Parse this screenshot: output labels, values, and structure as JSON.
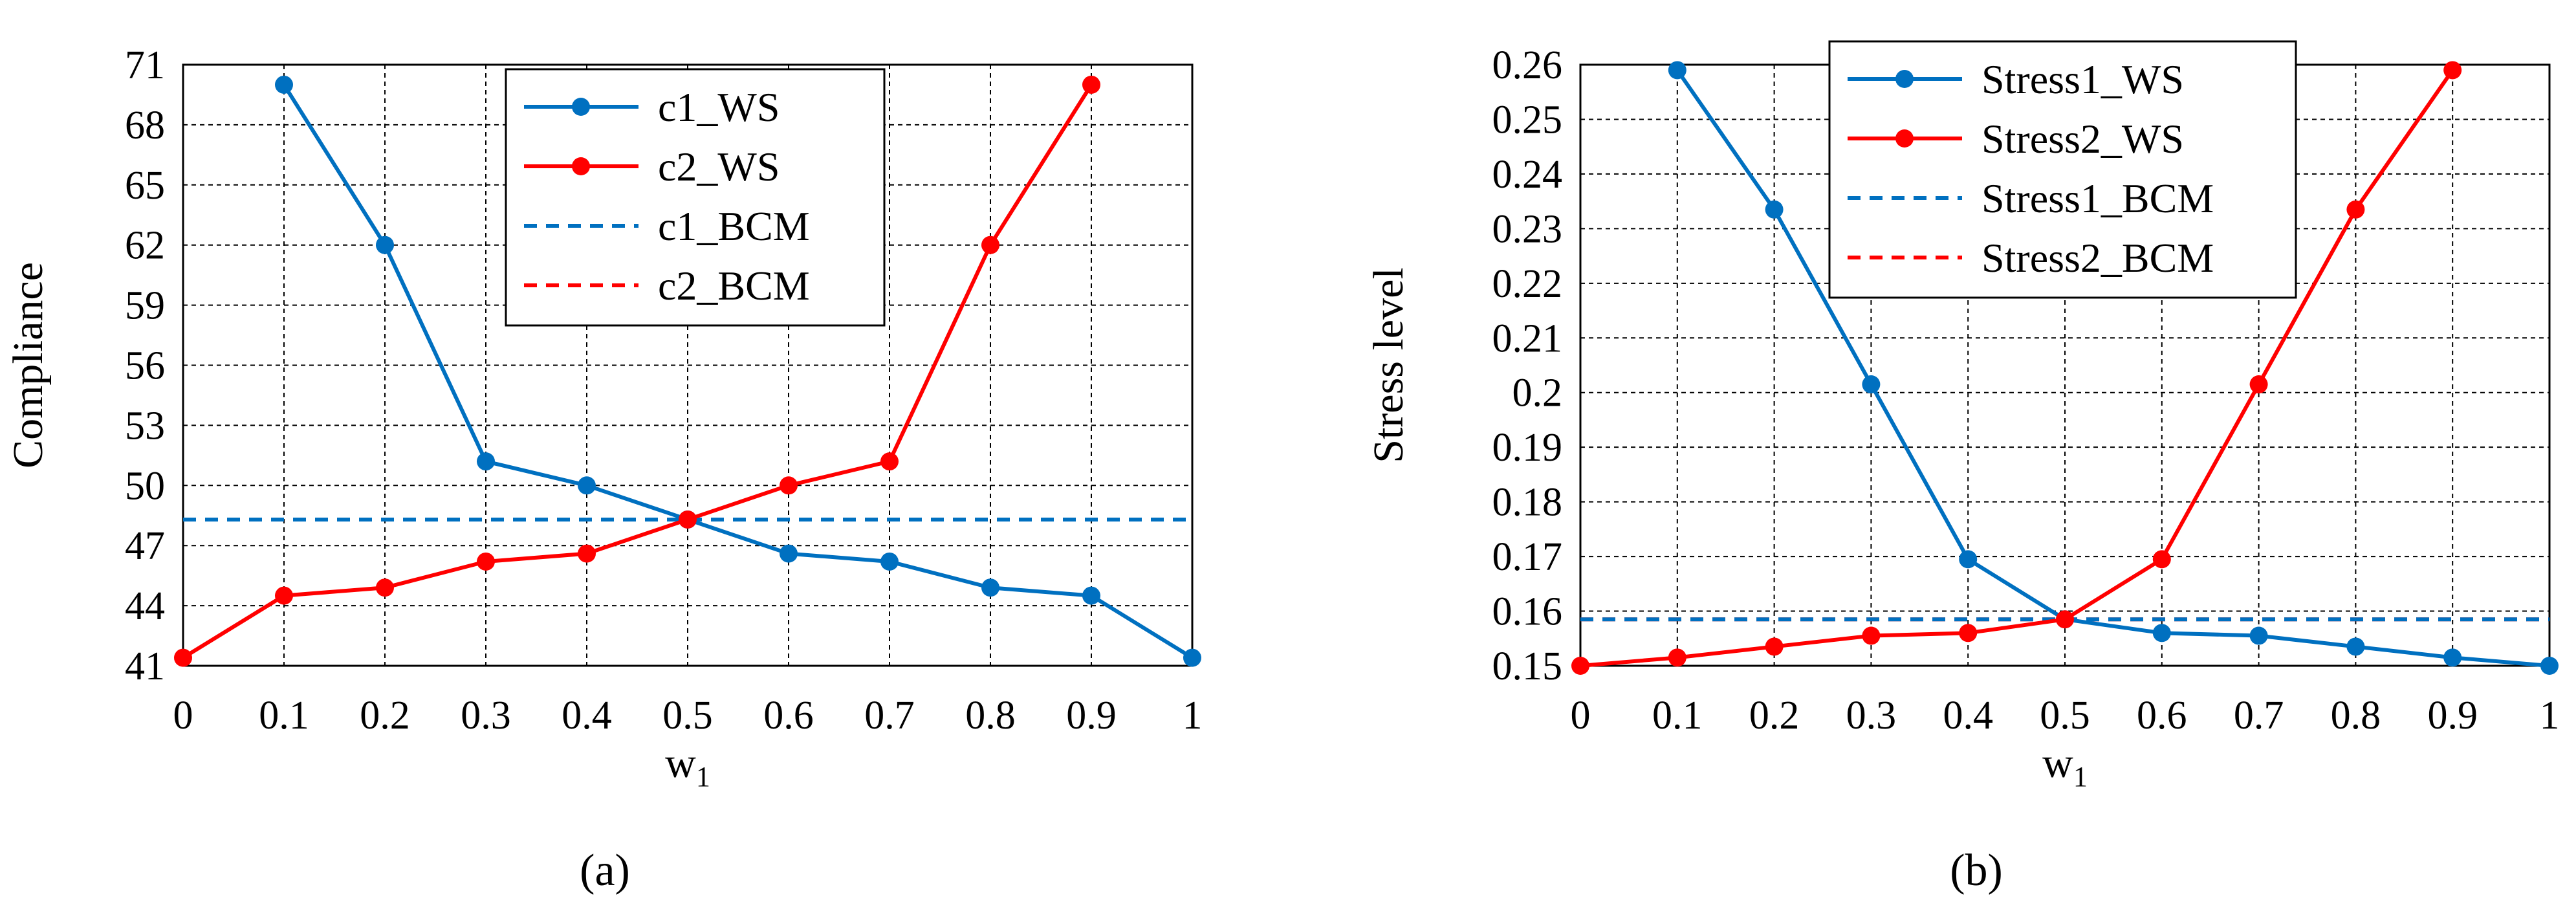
{
  "panel_labels": [
    "(a)",
    "(b)"
  ],
  "colors": {
    "blue": "#0070c0",
    "red": "#ff0000",
    "grid": "#000000"
  },
  "chart_data": [
    {
      "type": "line",
      "panel": "(a)",
      "xlabel": "w1",
      "ylabel": "Compliance",
      "x": [
        0,
        0.1,
        0.2,
        0.3,
        0.4,
        0.5,
        0.6,
        0.7,
        0.8,
        0.9,
        1
      ],
      "x_ticks": [
        "0",
        "0.1",
        "0.2",
        "0.3",
        "0.4",
        "0.5",
        "0.6",
        "0.7",
        "0.8",
        "0.9",
        "1"
      ],
      "ylim": [
        41,
        71
      ],
      "y_ticks": [
        "41",
        "44",
        "47",
        "50",
        "53",
        "56",
        "59",
        "62",
        "65",
        "68",
        "71"
      ],
      "grid": true,
      "legend_position": "top-center",
      "series": [
        {
          "name": "c1_WS",
          "color": "#0070c0",
          "style": "solid-markers",
          "x": [
            0.1,
            0.2,
            0.3,
            0.4,
            0.5,
            0.6,
            0.7,
            0.8,
            0.9,
            1
          ],
          "values": [
            70.0,
            62.0,
            51.2,
            50.0,
            48.3,
            46.6,
            46.2,
            44.9,
            44.5,
            41.4
          ]
        },
        {
          "name": "c2_WS",
          "color": "#ff0000",
          "style": "solid-markers",
          "x": [
            0,
            0.1,
            0.2,
            0.3,
            0.4,
            0.5,
            0.6,
            0.7,
            0.8,
            0.9
          ],
          "values": [
            41.4,
            44.5,
            44.9,
            46.2,
            46.6,
            48.3,
            50.0,
            51.2,
            62.0,
            70.0
          ]
        },
        {
          "name": "c1_BCM",
          "color": "#0070c0",
          "style": "dashed",
          "x": [
            0,
            1
          ],
          "values": [
            48.3,
            48.3
          ]
        },
        {
          "name": "c2_BCM",
          "color": "#ff0000",
          "style": "dashed",
          "x": [
            0,
            1
          ],
          "values": [
            48.3,
            48.3
          ]
        }
      ]
    },
    {
      "type": "line",
      "panel": "(b)",
      "xlabel": "w1",
      "ylabel": "Stress level",
      "x": [
        0,
        0.1,
        0.2,
        0.3,
        0.4,
        0.5,
        0.6,
        0.7,
        0.8,
        0.9,
        1
      ],
      "x_ticks": [
        "0",
        "0.1",
        "0.2",
        "0.3",
        "0.4",
        "0.5",
        "0.6",
        "0.7",
        "0.8",
        "0.9",
        "1"
      ],
      "ylim": [
        0.15,
        0.26
      ],
      "y_ticks": [
        "0.15",
        "0.16",
        "0.17",
        "0.18",
        "0.19",
        "0.2",
        "0.21",
        "0.22",
        "0.23",
        "0.24",
        "0.25",
        "0.26"
      ],
      "grid": true,
      "legend_position": "top-center",
      "series": [
        {
          "name": "Stress1_WS",
          "color": "#0070c0",
          "style": "solid-markers",
          "x": [
            0.1,
            0.2,
            0.3,
            0.4,
            0.5,
            0.6,
            0.7,
            0.8,
            0.9,
            1
          ],
          "values": [
            0.259,
            0.2335,
            0.2015,
            0.1695,
            0.1585,
            0.156,
            0.1555,
            0.1535,
            0.1515,
            0.15
          ]
        },
        {
          "name": "Stress2_WS",
          "color": "#ff0000",
          "style": "solid-markers",
          "x": [
            0,
            0.1,
            0.2,
            0.3,
            0.4,
            0.5,
            0.6,
            0.7,
            0.8,
            0.9
          ],
          "values": [
            0.15,
            0.1515,
            0.1535,
            0.1555,
            0.156,
            0.1585,
            0.1695,
            0.2015,
            0.2335,
            0.259
          ]
        },
        {
          "name": "Stress1_BCM",
          "color": "#0070c0",
          "style": "dashed",
          "x": [
            0,
            1
          ],
          "values": [
            0.1585,
            0.1585
          ]
        },
        {
          "name": "Stress2_BCM",
          "color": "#ff0000",
          "style": "dashed",
          "x": [
            0,
            1
          ],
          "values": [
            0.1585,
            0.1585
          ]
        }
      ]
    }
  ]
}
